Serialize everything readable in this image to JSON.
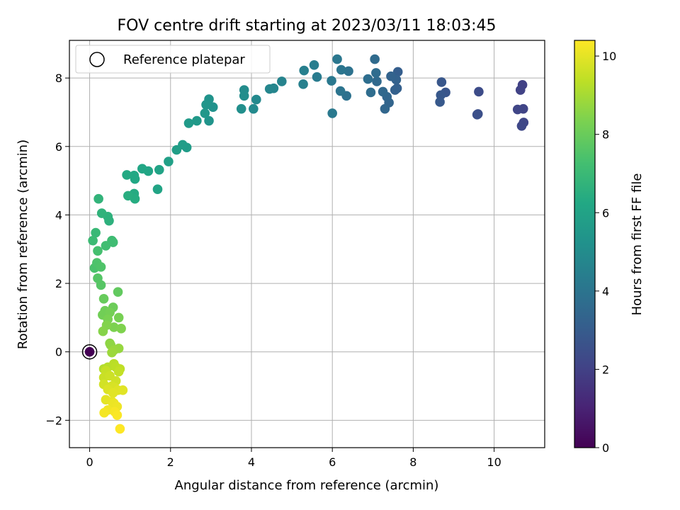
{
  "chart_data": {
    "type": "scatter",
    "title": "FOV centre drift starting at 2023/03/11 18:03:45",
    "xlabel": "Angular distance from reference (arcmin)",
    "ylabel": "Rotation from reference (arcmin)",
    "xlim": [
      -0.5,
      11.25
    ],
    "ylim": [
      -2.8,
      9.1
    ],
    "x_ticks": [
      0,
      2,
      4,
      6,
      8,
      10
    ],
    "y_ticks": [
      -2,
      0,
      2,
      4,
      6,
      8
    ],
    "grid": true,
    "legend": {
      "placement": "top-left",
      "entries": [
        "Reference platepar"
      ]
    },
    "reference_point": {
      "x": 0,
      "y": 0,
      "hours": 0,
      "label": "Reference platepar"
    },
    "colorbar": {
      "label": "Hours from first FF file",
      "min": 0,
      "max": 10.4,
      "ticks": [
        0,
        2,
        4,
        6,
        8,
        10
      ],
      "colormap": "viridis"
    },
    "points": [
      [
        10.7,
        7.8,
        2.0
      ],
      [
        10.65,
        7.65,
        2.05
      ],
      [
        10.72,
        7.1,
        2.1
      ],
      [
        10.58,
        7.08,
        2.15
      ],
      [
        10.73,
        6.7,
        2.2
      ],
      [
        10.68,
        6.6,
        2.25
      ],
      [
        9.62,
        7.6,
        2.4
      ],
      [
        9.6,
        6.95,
        2.5
      ],
      [
        9.58,
        6.93,
        2.55
      ],
      [
        8.8,
        7.58,
        2.75
      ],
      [
        8.7,
        7.88,
        2.8
      ],
      [
        8.68,
        7.5,
        2.85
      ],
      [
        8.66,
        7.3,
        2.9
      ],
      [
        7.62,
        8.18,
        3.1
      ],
      [
        7.6,
        7.7,
        3.15
      ],
      [
        7.55,
        7.65,
        3.2
      ],
      [
        7.58,
        7.95,
        3.25
      ],
      [
        7.45,
        8.05,
        3.3
      ],
      [
        7.4,
        7.28,
        3.35
      ],
      [
        7.35,
        7.45,
        3.4
      ],
      [
        7.3,
        7.1,
        3.45
      ],
      [
        7.25,
        7.6,
        3.5
      ],
      [
        7.1,
        7.9,
        3.55
      ],
      [
        7.05,
        8.55,
        3.6
      ],
      [
        7.08,
        8.15,
        3.65
      ],
      [
        6.95,
        7.58,
        3.7
      ],
      [
        6.88,
        7.97,
        3.75
      ],
      [
        6.35,
        7.48,
        3.85
      ],
      [
        6.4,
        8.2,
        3.9
      ],
      [
        6.2,
        7.62,
        4.0
      ],
      [
        6.22,
        8.24,
        4.05
      ],
      [
        6.12,
        8.55,
        4.1
      ],
      [
        5.98,
        7.92,
        4.15
      ],
      [
        6.0,
        6.97,
        4.2
      ],
      [
        5.62,
        8.03,
        4.3
      ],
      [
        5.55,
        8.38,
        4.35
      ],
      [
        5.3,
        8.22,
        4.45
      ],
      [
        5.28,
        7.82,
        4.5
      ],
      [
        4.75,
        7.9,
        4.6
      ],
      [
        4.55,
        7.7,
        4.7
      ],
      [
        4.45,
        7.68,
        4.75
      ],
      [
        4.12,
        7.37,
        4.85
      ],
      [
        4.05,
        7.1,
        4.9
      ],
      [
        3.82,
        7.65,
        5.0
      ],
      [
        3.82,
        7.48,
        5.05
      ],
      [
        3.75,
        7.1,
        5.1
      ],
      [
        3.05,
        7.15,
        5.25
      ],
      [
        2.95,
        7.38,
        5.3
      ],
      [
        2.95,
        6.75,
        5.35
      ],
      [
        2.88,
        7.22,
        5.4
      ],
      [
        2.85,
        6.97,
        5.45
      ],
      [
        2.65,
        6.75,
        5.55
      ],
      [
        2.45,
        6.68,
        5.6
      ],
      [
        2.4,
        5.97,
        5.7
      ],
      [
        2.3,
        6.05,
        5.75
      ],
      [
        2.15,
        5.9,
        5.8
      ],
      [
        1.95,
        5.56,
        5.9
      ],
      [
        1.72,
        5.32,
        6.0
      ],
      [
        1.68,
        4.75,
        6.05
      ],
      [
        1.45,
        5.28,
        6.1
      ],
      [
        1.3,
        5.35,
        6.15
      ],
      [
        1.12,
        5.05,
        6.2
      ],
      [
        1.1,
        5.15,
        6.25
      ],
      [
        0.92,
        5.17,
        6.3
      ],
      [
        1.1,
        4.62,
        6.35
      ],
      [
        1.12,
        4.47,
        6.4
      ],
      [
        0.95,
        4.56,
        6.45
      ],
      [
        0.48,
        3.83,
        6.6
      ],
      [
        0.45,
        3.95,
        6.65
      ],
      [
        0.3,
        4.05,
        6.7
      ],
      [
        0.22,
        4.47,
        6.75
      ],
      [
        0.15,
        3.48,
        6.95
      ],
      [
        0.08,
        3.25,
        7.05
      ],
      [
        0.55,
        3.25,
        7.1
      ],
      [
        0.58,
        3.2,
        7.15
      ],
      [
        0.4,
        3.1,
        7.2
      ],
      [
        0.2,
        2.95,
        7.3
      ],
      [
        0.12,
        2.45,
        7.4
      ],
      [
        0.18,
        2.6,
        7.45
      ],
      [
        0.28,
        2.48,
        7.5
      ],
      [
        0.2,
        2.15,
        7.6
      ],
      [
        0.28,
        1.95,
        7.65
      ],
      [
        0.7,
        1.75,
        7.85
      ],
      [
        0.35,
        1.55,
        7.95
      ],
      [
        0.58,
        1.3,
        8.05
      ],
      [
        0.38,
        1.2,
        8.1
      ],
      [
        0.32,
        1.08,
        8.15
      ],
      [
        0.5,
        1.15,
        8.2
      ],
      [
        0.72,
        1.0,
        8.25
      ],
      [
        0.45,
        0.95,
        8.3
      ],
      [
        0.6,
        0.72,
        8.35
      ],
      [
        0.78,
        0.68,
        8.4
      ],
      [
        0.42,
        0.78,
        8.45
      ],
      [
        0.33,
        0.6,
        8.5
      ],
      [
        0.5,
        0.25,
        8.6
      ],
      [
        0.52,
        0.2,
        8.65
      ],
      [
        0.72,
        0.1,
        8.75
      ],
      [
        0.6,
        0.05,
        8.8
      ],
      [
        0.55,
        -0.02,
        8.85
      ],
      [
        0.35,
        -0.5,
        9.2
      ],
      [
        0.45,
        -0.45,
        9.25
      ],
      [
        0.6,
        -0.35,
        9.3
      ],
      [
        0.65,
        -0.45,
        9.35
      ],
      [
        0.75,
        -0.5,
        9.4
      ],
      [
        0.72,
        -0.58,
        9.45
      ],
      [
        0.4,
        -0.55,
        9.5
      ],
      [
        0.35,
        -0.75,
        9.55
      ],
      [
        0.5,
        -0.7,
        9.6
      ],
      [
        0.65,
        -0.85,
        9.65
      ],
      [
        0.35,
        -0.95,
        9.7
      ],
      [
        0.55,
        -1.0,
        9.75
      ],
      [
        0.62,
        -1.05,
        9.8
      ],
      [
        0.45,
        -1.1,
        9.85
      ],
      [
        0.7,
        -1.12,
        9.9
      ],
      [
        0.82,
        -1.12,
        9.95
      ],
      [
        0.58,
        -1.2,
        9.95
      ],
      [
        0.4,
        -1.4,
        10.0
      ],
      [
        0.55,
        -1.45,
        10.05
      ],
      [
        0.6,
        -1.5,
        10.1
      ],
      [
        0.68,
        -1.6,
        10.15
      ],
      [
        0.45,
        -1.7,
        10.2
      ],
      [
        0.36,
        -1.78,
        10.25
      ],
      [
        0.62,
        -1.75,
        10.3
      ],
      [
        0.68,
        -1.85,
        10.35
      ],
      [
        0.75,
        -2.25,
        10.4
      ]
    ]
  }
}
